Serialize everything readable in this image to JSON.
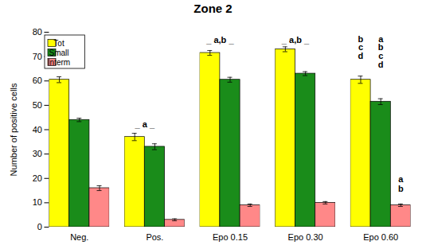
{
  "chart_data": {
    "type": "bar",
    "title": "Zone 2",
    "ylabel": "Number of positive cells",
    "categories": [
      "Neg.",
      "Pos.",
      "Epo 0.15",
      "Epo 0.30",
      "Epo 0.60"
    ],
    "series": [
      {
        "name": "Tot",
        "color": "#FFFF00",
        "values": [
          60.5,
          37.0,
          71.5,
          73.0,
          60.5
        ],
        "errors": [
          1.2,
          1.5,
          1.0,
          1.0,
          1.5
        ]
      },
      {
        "name": "Small",
        "color": "#1a8c1a",
        "values": [
          44.0,
          33.0,
          60.5,
          63.0,
          51.5
        ],
        "errors": [
          0.7,
          1.2,
          1.0,
          0.8,
          1.2
        ]
      },
      {
        "name": "Interm",
        "color": "#ff8888",
        "values": [
          16.0,
          3.0,
          9.0,
          10.0,
          9.0
        ],
        "errors": [
          1.0,
          0.4,
          0.5,
          0.5,
          0.5
        ]
      }
    ],
    "ylim": [
      0,
      80
    ],
    "yticks": [
      0,
      10,
      20,
      30,
      40,
      50,
      60,
      70,
      80
    ],
    "legend": "upper-left",
    "annotations": [
      {
        "text": "_ a _",
        "category": "Pos.",
        "series": [
          "Tot",
          "Small"
        ],
        "y": 41.0
      },
      {
        "text": "_ a,b _",
        "category": "Epo 0.15",
        "series": [
          "Tot",
          "Small"
        ],
        "y": 75.5
      },
      {
        "text": "_ a,b _",
        "category": "Epo 0.30",
        "series": [
          "Tot",
          "Small"
        ],
        "y": 75.5
      },
      {
        "text": "b",
        "category": "Epo 0.60",
        "series": [
          "Tot"
        ],
        "y": 76
      },
      {
        "text": "c",
        "category": "Epo 0.60",
        "series": [
          "Tot"
        ],
        "y": 72.5
      },
      {
        "text": "d",
        "category": "Epo 0.60",
        "series": [
          "Tot"
        ],
        "y": 69
      },
      {
        "text": "a",
        "category": "Epo 0.60",
        "series": [
          "Small"
        ],
        "y": 76
      },
      {
        "text": "b",
        "category": "Epo 0.60",
        "series": [
          "Small"
        ],
        "y": 72.5
      },
      {
        "text": "c",
        "category": "Epo 0.60",
        "series": [
          "Small"
        ],
        "y": 69
      },
      {
        "text": "d",
        "category": "Epo 0.60",
        "series": [
          "Small"
        ],
        "y": 65.5
      },
      {
        "text": "a",
        "category": "Epo 0.60",
        "series": [
          "Interm"
        ],
        "y": 18.5
      },
      {
        "text": "b",
        "category": "Epo 0.60",
        "series": [
          "Interm"
        ],
        "y": 14.5
      }
    ]
  }
}
